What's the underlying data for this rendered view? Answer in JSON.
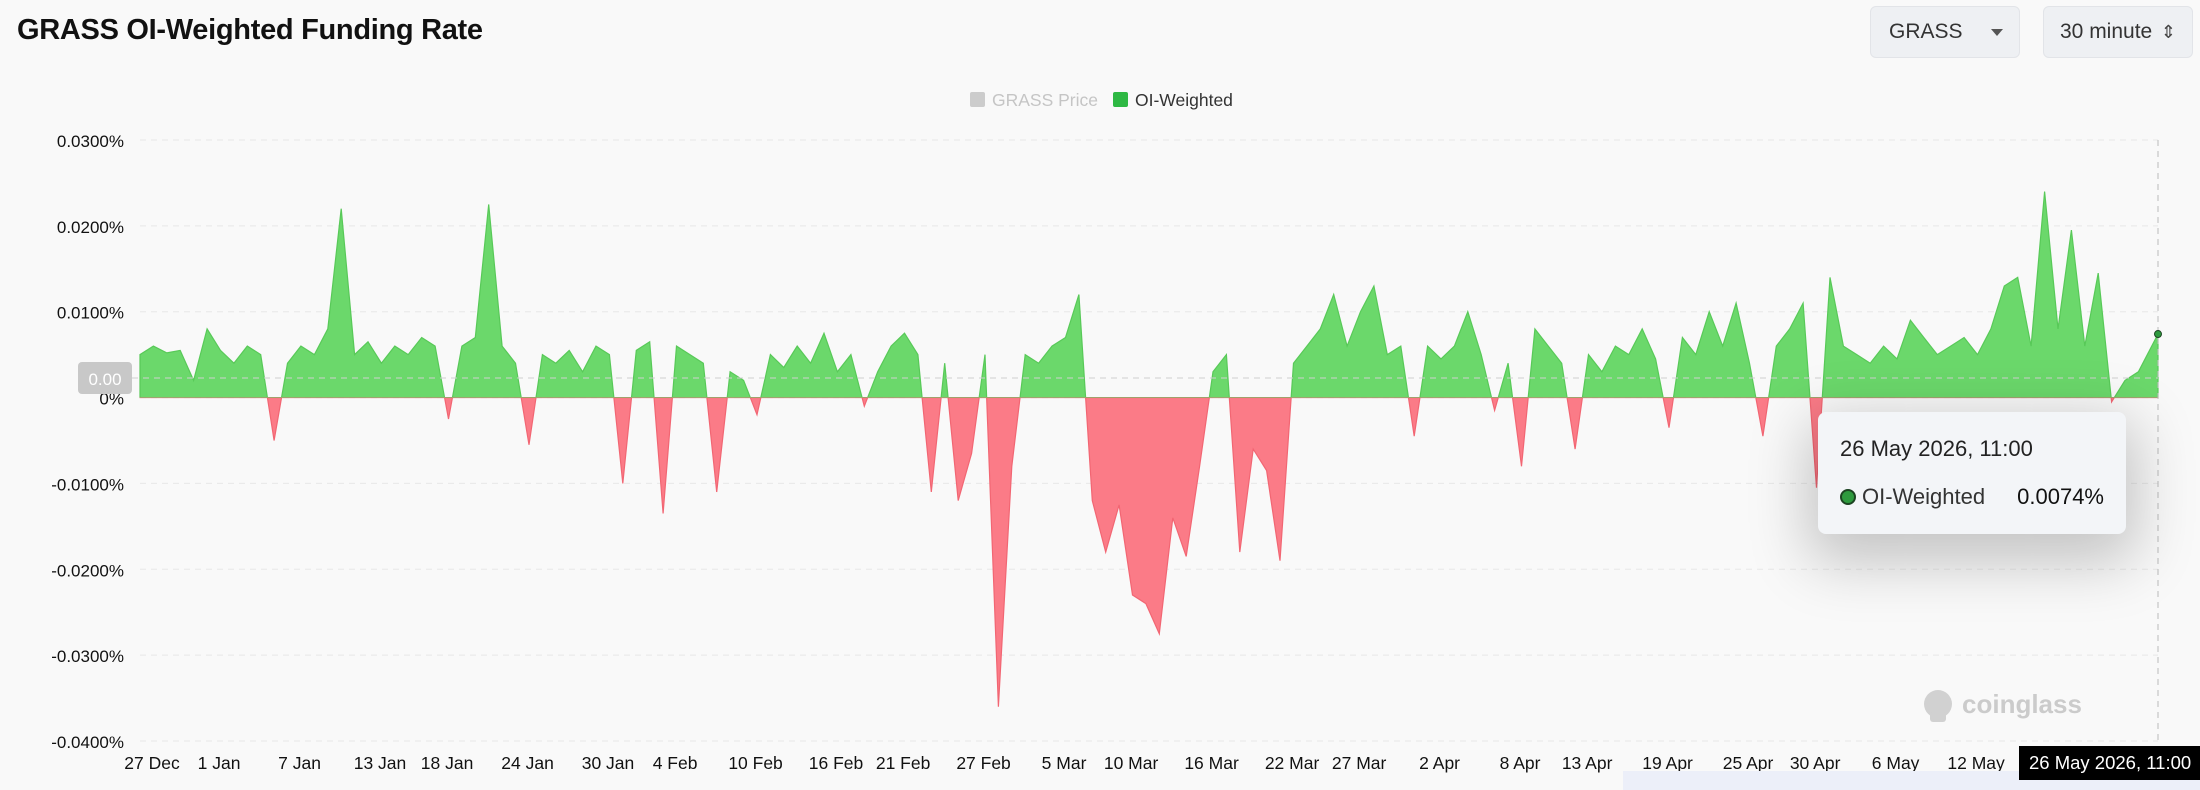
{
  "header": {
    "title": "GRASS OI-Weighted Funding Rate",
    "symbol_select": "GRASS",
    "interval_select": "30 minute"
  },
  "legend": [
    {
      "label": "GRASS Price",
      "color": "#cccccc",
      "active": false
    },
    {
      "label": "OI-Weighted",
      "color": "#2eb843",
      "active": true
    }
  ],
  "colors": {
    "positive": "#6bd86b",
    "negative": "#fb7b87",
    "positive_line": "#58c958",
    "negative_line": "#f26673"
  },
  "watermark": "coinglass",
  "zero_label": "0.00",
  "tooltip": {
    "time": "26 May 2026, 11:00",
    "series": "OI-Weighted",
    "value": "0.0074%"
  },
  "cursor_label": "26 May 2026, 11:00",
  "chart_data": {
    "type": "area",
    "x_start": "2025-12-27",
    "x_end": "2026-05-26T11:00",
    "y_unit": "%",
    "ylim": [
      -0.04,
      0.03
    ],
    "y_ticks": [
      "0.0300%",
      "0.0200%",
      "0.0100%",
      "0%",
      "-0.0100%",
      "-0.0200%",
      "-0.0300%",
      "-0.0400%"
    ],
    "x_ticks": [
      "27 Dec",
      "1 Jan",
      "7 Jan",
      "13 Jan",
      "18 Jan",
      "24 Jan",
      "30 Jan",
      "4 Feb",
      "10 Feb",
      "16 Feb",
      "21 Feb",
      "27 Feb",
      "5 Mar",
      "10 Mar",
      "16 Mar",
      "22 Mar",
      "27 Mar",
      "2 Apr",
      "8 Apr",
      "13 Apr",
      "19 Apr",
      "25 Apr",
      "30 Apr",
      "6 May",
      "12 May"
    ],
    "grid": true,
    "legend_position": "top-center",
    "series": [
      {
        "name": "OI-Weighted",
        "points": [
          [
            "2025-12-27",
            0.005
          ],
          [
            "2025-12-28",
            0.006
          ],
          [
            "2025-12-29",
            0.0052
          ],
          [
            "2025-12-30",
            0.0055
          ],
          [
            "2025-12-31",
            0.002
          ],
          [
            "2026-01-01",
            0.008
          ],
          [
            "2026-01-02",
            0.0055
          ],
          [
            "2026-01-03",
            0.004
          ],
          [
            "2026-01-04",
            0.006
          ],
          [
            "2026-01-05",
            0.005
          ],
          [
            "2026-01-06",
            -0.005
          ],
          [
            "2026-01-07",
            0.004
          ],
          [
            "2026-01-08",
            0.006
          ],
          [
            "2026-01-09",
            0.005
          ],
          [
            "2026-01-10",
            0.008
          ],
          [
            "2026-01-11",
            0.022
          ],
          [
            "2026-01-12",
            0.005
          ],
          [
            "2026-01-13",
            0.0065
          ],
          [
            "2026-01-14",
            0.004
          ],
          [
            "2026-01-15",
            0.006
          ],
          [
            "2026-01-16",
            0.005
          ],
          [
            "2026-01-17",
            0.007
          ],
          [
            "2026-01-18",
            0.006
          ],
          [
            "2026-01-19",
            -0.0025
          ],
          [
            "2026-01-20",
            0.006
          ],
          [
            "2026-01-21",
            0.007
          ],
          [
            "2026-01-22",
            0.0225
          ],
          [
            "2026-01-23",
            0.006
          ],
          [
            "2026-01-24",
            0.004
          ],
          [
            "2026-01-25",
            -0.0055
          ],
          [
            "2026-01-26",
            0.005
          ],
          [
            "2026-01-27",
            0.004
          ],
          [
            "2026-01-28",
            0.0055
          ],
          [
            "2026-01-29",
            0.003
          ],
          [
            "2026-01-30",
            0.006
          ],
          [
            "2026-01-31",
            0.005
          ],
          [
            "2026-02-01",
            -0.01
          ],
          [
            "2026-02-02",
            0.0055
          ],
          [
            "2026-02-03",
            0.0065
          ],
          [
            "2026-02-04",
            -0.0135
          ],
          [
            "2026-02-05",
            0.006
          ],
          [
            "2026-02-06",
            0.005
          ],
          [
            "2026-02-07",
            0.004
          ],
          [
            "2026-02-08",
            -0.011
          ],
          [
            "2026-02-09",
            0.003
          ],
          [
            "2026-02-10",
            0.002
          ],
          [
            "2026-02-11",
            -0.002
          ],
          [
            "2026-02-12",
            0.005
          ],
          [
            "2026-02-13",
            0.0035
          ],
          [
            "2026-02-14",
            0.006
          ],
          [
            "2026-02-15",
            0.004
          ],
          [
            "2026-02-16",
            0.0075
          ],
          [
            "2026-02-17",
            0.003
          ],
          [
            "2026-02-18",
            0.005
          ],
          [
            "2026-02-19",
            -0.001
          ],
          [
            "2026-02-20",
            0.003
          ],
          [
            "2026-02-21",
            0.006
          ],
          [
            "2026-02-22",
            0.0075
          ],
          [
            "2026-02-23",
            0.005
          ],
          [
            "2026-02-24",
            -0.011
          ],
          [
            "2026-02-25",
            0.004
          ],
          [
            "2026-02-26",
            -0.012
          ],
          [
            "2026-02-27",
            -0.0065
          ],
          [
            "2026-02-28",
            0.005
          ],
          [
            "2026-03-01",
            -0.036
          ],
          [
            "2026-03-02",
            -0.008
          ],
          [
            "2026-03-03",
            0.005
          ],
          [
            "2026-03-04",
            0.004
          ],
          [
            "2026-03-05",
            0.006
          ],
          [
            "2026-03-06",
            0.007
          ],
          [
            "2026-03-07",
            0.012
          ],
          [
            "2026-03-08",
            -0.012
          ],
          [
            "2026-03-09",
            -0.018
          ],
          [
            "2026-03-10",
            -0.0125
          ],
          [
            "2026-03-11",
            -0.023
          ],
          [
            "2026-03-12",
            -0.024
          ],
          [
            "2026-03-13",
            -0.0275
          ],
          [
            "2026-03-14",
            -0.014
          ],
          [
            "2026-03-15",
            -0.0185
          ],
          [
            "2026-03-16",
            -0.008
          ],
          [
            "2026-03-17",
            0.003
          ],
          [
            "2026-03-18",
            0.005
          ],
          [
            "2026-03-19",
            -0.018
          ],
          [
            "2026-03-20",
            -0.006
          ],
          [
            "2026-03-21",
            -0.0085
          ],
          [
            "2026-03-22",
            -0.019
          ],
          [
            "2026-03-23",
            0.004
          ],
          [
            "2026-03-24",
            0.006
          ],
          [
            "2026-03-25",
            0.008
          ],
          [
            "2026-03-26",
            0.012
          ],
          [
            "2026-03-27",
            0.006
          ],
          [
            "2026-03-28",
            0.01
          ],
          [
            "2026-03-29",
            0.013
          ],
          [
            "2026-03-30",
            0.005
          ],
          [
            "2026-03-31",
            0.006
          ],
          [
            "2026-04-01",
            -0.0045
          ],
          [
            "2026-04-02",
            0.006
          ],
          [
            "2026-04-03",
            0.0045
          ],
          [
            "2026-04-04",
            0.006
          ],
          [
            "2026-04-05",
            0.01
          ],
          [
            "2026-04-06",
            0.005
          ],
          [
            "2026-04-07",
            -0.0015
          ],
          [
            "2026-04-08",
            0.004
          ],
          [
            "2026-04-09",
            -0.008
          ],
          [
            "2026-04-10",
            0.008
          ],
          [
            "2026-04-11",
            0.006
          ],
          [
            "2026-04-12",
            0.004
          ],
          [
            "2026-04-13",
            -0.006
          ],
          [
            "2026-04-14",
            0.005
          ],
          [
            "2026-04-15",
            0.003
          ],
          [
            "2026-04-16",
            0.006
          ],
          [
            "2026-04-17",
            0.005
          ],
          [
            "2026-04-18",
            0.008
          ],
          [
            "2026-04-19",
            0.0045
          ],
          [
            "2026-04-20",
            -0.0035
          ],
          [
            "2026-04-21",
            0.007
          ],
          [
            "2026-04-22",
            0.005
          ],
          [
            "2026-04-23",
            0.01
          ],
          [
            "2026-04-24",
            0.006
          ],
          [
            "2026-04-25",
            0.011
          ],
          [
            "2026-04-26",
            0.004
          ],
          [
            "2026-04-27",
            -0.0045
          ],
          [
            "2026-04-28",
            0.006
          ],
          [
            "2026-04-29",
            0.008
          ],
          [
            "2026-04-30",
            0.011
          ],
          [
            "2026-05-01",
            -0.0105
          ],
          [
            "2026-05-02",
            0.014
          ],
          [
            "2026-05-03",
            0.006
          ],
          [
            "2026-05-04",
            0.005
          ],
          [
            "2026-05-05",
            0.004
          ],
          [
            "2026-05-06",
            0.006
          ],
          [
            "2026-05-07",
            0.0045
          ],
          [
            "2026-05-08",
            0.009
          ],
          [
            "2026-05-09",
            0.007
          ],
          [
            "2026-05-10",
            0.005
          ],
          [
            "2026-05-11",
            0.006
          ],
          [
            "2026-05-12",
            0.007
          ],
          [
            "2026-05-13",
            0.005
          ],
          [
            "2026-05-14",
            0.008
          ],
          [
            "2026-05-15",
            0.013
          ],
          [
            "2026-05-16",
            0.014
          ],
          [
            "2026-05-17",
            0.006
          ],
          [
            "2026-05-18",
            0.024
          ],
          [
            "2026-05-19",
            0.008
          ],
          [
            "2026-05-20",
            0.0195
          ],
          [
            "2026-05-21",
            0.006
          ],
          [
            "2026-05-22",
            0.0145
          ],
          [
            "2026-05-23",
            -0.0005
          ],
          [
            "2026-05-24",
            0.002
          ],
          [
            "2026-05-25",
            0.003
          ],
          [
            "2026-05-26T11:00",
            0.0074
          ]
        ]
      }
    ]
  }
}
